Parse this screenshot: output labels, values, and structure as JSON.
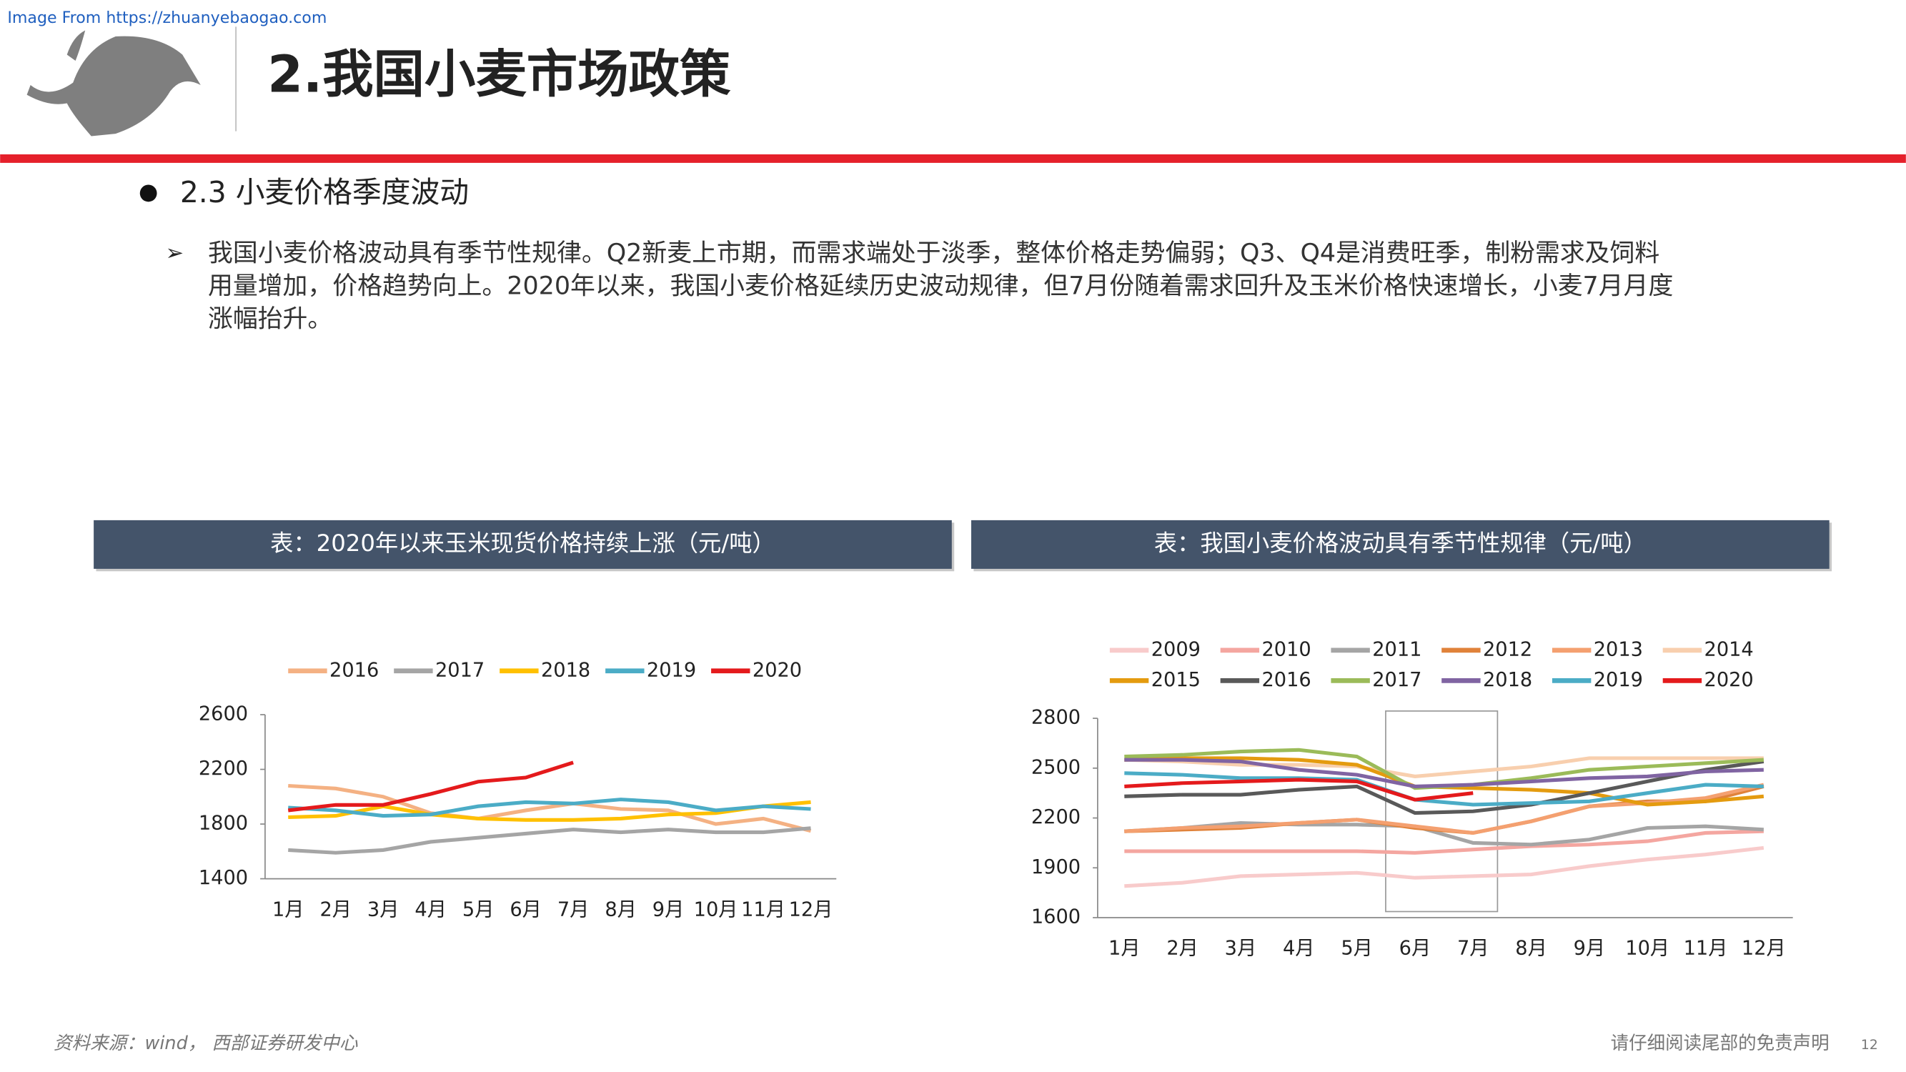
{
  "watermark": "Image From https://zhuanyebaogao.com",
  "header": {
    "title": "2.我国小麦市场政策"
  },
  "section": {
    "heading": "2.3 小麦价格季度波动",
    "paragraph": [
      "我国小麦价格波动具有季节性规律。Q2新麦上市期，而需求端处于淡季，整体价格走势偏弱；Q3、Q4是消费旺季，制粉需求及饲料",
      "用量增加，价格趋势向上。2020年以来，我国小麦价格延续历史波动规律，但7月份随着需求回升及玉米价格快速增长，小麦7月月度",
      "涨幅抬升。"
    ]
  },
  "chart_data": [
    {
      "type": "line",
      "title": "表：2020年以来玉米现货价格持续上涨（元/吨）",
      "categories": [
        "1月",
        "2月",
        "3月",
        "4月",
        "5月",
        "6月",
        "7月",
        "8月",
        "9月",
        "10月",
        "11月",
        "12月"
      ],
      "ylim": [
        1400,
        2600
      ],
      "yticks": [
        1400,
        1800,
        2200,
        2600
      ],
      "series": [
        {
          "name": "2016",
          "color": "#f4b183",
          "values": [
            2080,
            2060,
            2000,
            1880,
            1840,
            1900,
            1950,
            1910,
            1900,
            1800,
            1840,
            1750
          ]
        },
        {
          "name": "2017",
          "color": "#a5a5a5",
          "values": [
            1610,
            1590,
            1610,
            1670,
            1700,
            1730,
            1760,
            1740,
            1760,
            1740,
            1740,
            1770
          ]
        },
        {
          "name": "2018",
          "color": "#ffc000",
          "values": [
            1850,
            1860,
            1930,
            1870,
            1840,
            1830,
            1830,
            1840,
            1870,
            1880,
            1930,
            1960
          ]
        },
        {
          "name": "2019",
          "color": "#4bacc6",
          "values": [
            1920,
            1900,
            1860,
            1870,
            1930,
            1960,
            1950,
            1980,
            1960,
            1900,
            1930,
            1910
          ]
        },
        {
          "name": "2020",
          "color": "#e41a1c",
          "values": [
            1900,
            1940,
            1940,
            2020,
            2110,
            2140,
            2250,
            null,
            null,
            null,
            null,
            null
          ]
        }
      ]
    },
    {
      "type": "line",
      "title": "表：我国小麦价格波动具有季节性规律（元/吨）",
      "categories": [
        "1月",
        "2月",
        "3月",
        "4月",
        "5月",
        "6月",
        "7月",
        "8月",
        "9月",
        "10月",
        "11月",
        "12月"
      ],
      "ylim": [
        1600,
        2800
      ],
      "yticks": [
        1600,
        1900,
        2200,
        2500,
        2800
      ],
      "series": [
        {
          "name": "2009",
          "color": "#f8cbcb",
          "values": [
            1790,
            1810,
            1850,
            1860,
            1870,
            1840,
            1850,
            1860,
            1910,
            1950,
            1980,
            2020
          ]
        },
        {
          "name": "2010",
          "color": "#f4a6a0",
          "values": [
            2000,
            2000,
            2000,
            2000,
            2000,
            1990,
            2010,
            2030,
            2040,
            2060,
            2110,
            2120
          ]
        },
        {
          "name": "2011",
          "color": "#a5a5a5",
          "values": [
            2120,
            2140,
            2170,
            2160,
            2160,
            2150,
            2050,
            2040,
            2070,
            2140,
            2150,
            2130
          ]
        },
        {
          "name": "2012",
          "color": "#e0823a",
          "values": [
            2120,
            2130,
            2140,
            2170,
            2190,
            2140,
            2110,
            2180,
            2270,
            2300,
            2300,
            2390
          ]
        },
        {
          "name": "2013",
          "color": "#f4a070",
          "values": [
            2120,
            2140,
            2150,
            2170,
            2190,
            2150,
            2110,
            2180,
            2270,
            2290,
            2320,
            2400
          ]
        },
        {
          "name": "2014",
          "color": "#f8cfae",
          "values": [
            2550,
            2540,
            2520,
            2520,
            2510,
            2450,
            2480,
            2510,
            2560,
            2560,
            2560,
            2560
          ]
        },
        {
          "name": "2015",
          "color": "#e49b0f",
          "values": [
            2550,
            2560,
            2560,
            2550,
            2520,
            2390,
            2380,
            2370,
            2350,
            2280,
            2300,
            2330
          ]
        },
        {
          "name": "2016",
          "color": "#595959",
          "values": [
            2330,
            2340,
            2340,
            2370,
            2390,
            2230,
            2240,
            2280,
            2350,
            2420,
            2490,
            2540
          ]
        },
        {
          "name": "2017",
          "color": "#9bbb59",
          "values": [
            2570,
            2580,
            2600,
            2610,
            2570,
            2380,
            2400,
            2440,
            2490,
            2510,
            2530,
            2550
          ]
        },
        {
          "name": "2018",
          "color": "#8064a2",
          "values": [
            2550,
            2550,
            2540,
            2490,
            2460,
            2390,
            2400,
            2420,
            2440,
            2450,
            2480,
            2490
          ]
        },
        {
          "name": "2019",
          "color": "#4bacc6",
          "values": [
            2470,
            2460,
            2440,
            2440,
            2430,
            2310,
            2280,
            2290,
            2300,
            2350,
            2400,
            2390
          ]
        },
        {
          "name": "2020",
          "color": "#e41a1c",
          "values": [
            2390,
            2410,
            2420,
            2430,
            2420,
            2310,
            2350,
            null,
            null,
            null,
            null,
            null
          ]
        }
      ]
    }
  ],
  "footer": {
    "source": "资料来源：wind， 西部证券研发中心",
    "disclaimer": "请仔细阅读尾部的免责声明",
    "page": "12"
  }
}
